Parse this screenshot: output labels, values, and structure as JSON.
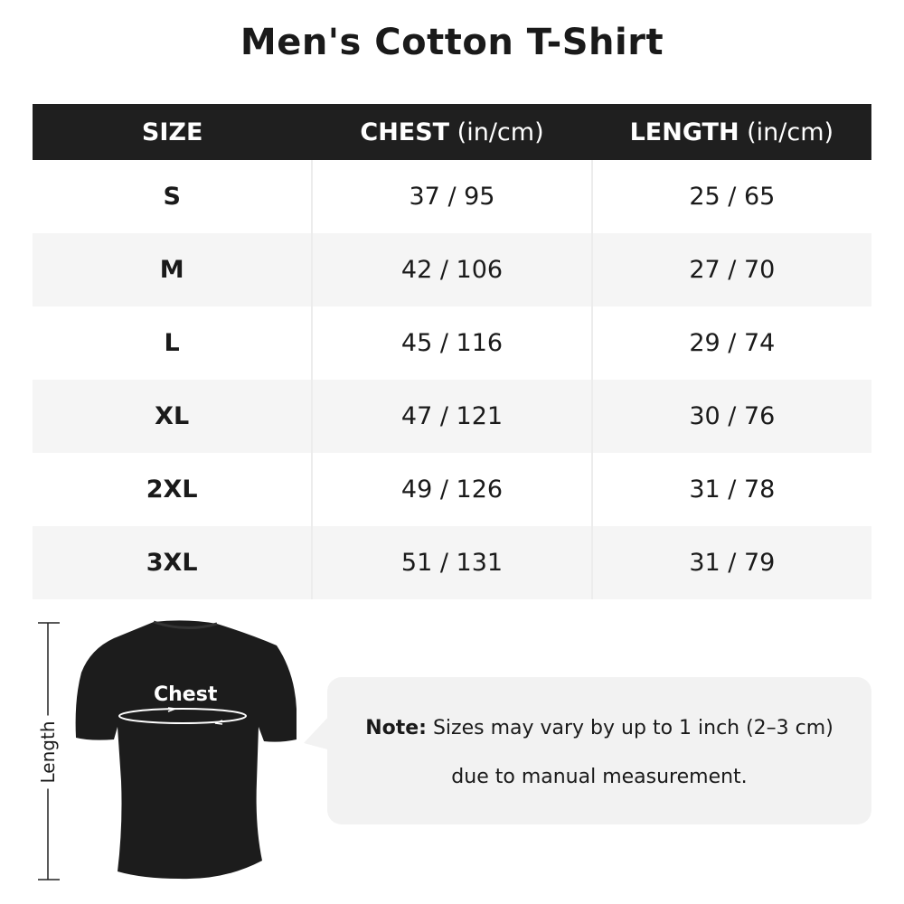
{
  "title": "Men's Cotton T-Shirt",
  "table": {
    "headers": [
      {
        "bold": "SIZE",
        "unit": ""
      },
      {
        "bold": "CHEST",
        "unit": " (in/cm)"
      },
      {
        "bold": "LENGTH",
        "unit": " (in/cm)"
      }
    ],
    "rows": [
      [
        "S",
        "37 / 95",
        "25 / 65"
      ],
      [
        "M",
        "42 / 106",
        "27 / 70"
      ],
      [
        "L",
        "45 / 116",
        "29 / 74"
      ],
      [
        "XL",
        "47 / 121",
        "30 / 76"
      ],
      [
        "2XL",
        "49 / 126",
        "31 / 78"
      ],
      [
        "3XL",
        "51 / 131",
        "31 / 79"
      ]
    ]
  },
  "diagram": {
    "chest_label": "Chest",
    "length_label": "Length"
  },
  "note": {
    "label": "Note:",
    "line1": " Sizes may vary by up to 1 inch (2–3 cm)",
    "line2": "due to manual measurement."
  },
  "colors": {
    "header_bg": "#1f1f1f",
    "stripe": "#f5f5f5",
    "bubble": "#f2f2f2"
  }
}
